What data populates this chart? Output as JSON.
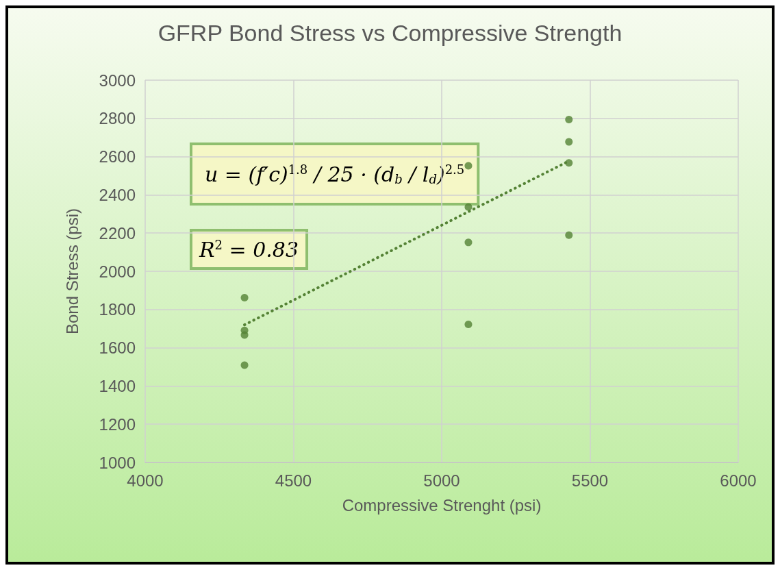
{
  "chart_data": {
    "type": "scatter",
    "title": "GFRP Bond Stress vs Compressive Strength",
    "xlabel": "Compressive Strenght (psi)",
    "ylabel": "Bond Stress (psi)",
    "series": [
      {
        "color": "#548235",
        "x": [
          4335,
          4335,
          4335,
          4335,
          5090,
          5090,
          5090,
          5090,
          5429,
          5429,
          5429,
          5429
        ],
        "values": [
          1862,
          1691,
          1667,
          1509,
          2552,
          2336,
          2151,
          1722,
          2794,
          2677,
          2567,
          2189
        ]
      },
      {
        "type": "line",
        "color": "#548235",
        "marker": "none",
        "line_style": "dotted",
        "x": [
          4335,
          5429
        ],
        "values": [
          1720,
          2577
        ]
      }
    ],
    "xlim": [
      4000,
      6000
    ],
    "xticks": [
      4000,
      4500,
      5000,
      5500,
      6000
    ],
    "ylim": [
      1000,
      3000
    ],
    "yticks": [
      1000,
      1200,
      1400,
      1600,
      1800,
      2000,
      2200,
      2400,
      2600,
      2800,
      3000
    ],
    "grid": true,
    "marker": "circle",
    "annotations": [
      "u = (f′c)$^{1.8}$ / 25 · (d$_{b}$ / l$_{d}$)$^{2.5}$",
      "R$^{2}$ = 0.83"
    ]
  }
}
